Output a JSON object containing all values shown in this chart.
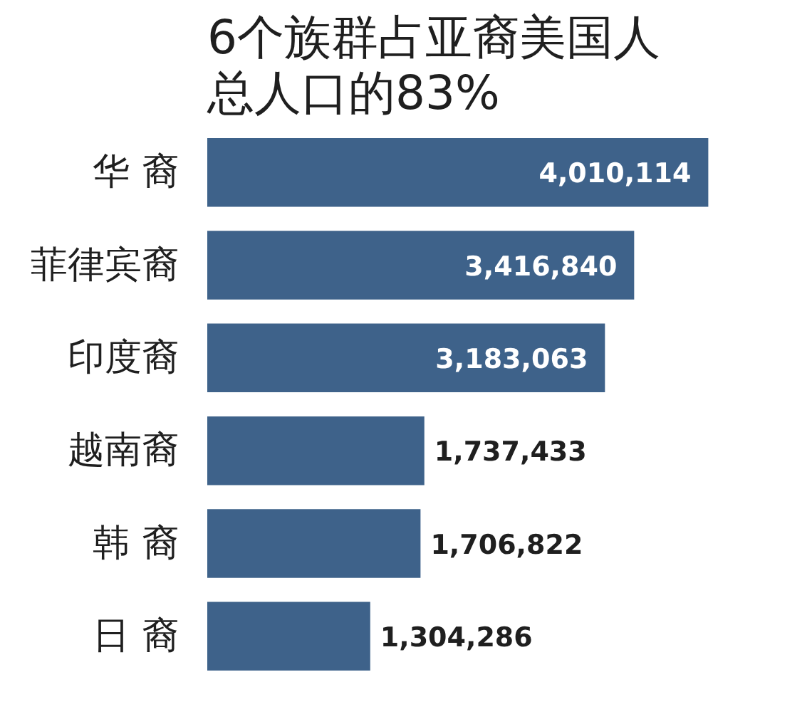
{
  "chart_data": {
    "type": "bar",
    "orientation": "horizontal",
    "title": "6个族群占亚裔美国人总人口的83%",
    "categories": [
      "华 裔",
      "菲律宾裔",
      "印度裔",
      "越南裔",
      "韩 裔",
      "日 裔"
    ],
    "values": [
      4010114,
      3416840,
      3183063,
      1737433,
      1706822,
      1304286
    ],
    "value_labels": [
      "4,010,114",
      "3,416,840",
      "3,183,063",
      "1,737,433",
      "1,706,822",
      "1,304,286"
    ],
    "color": "#3e628a"
  }
}
